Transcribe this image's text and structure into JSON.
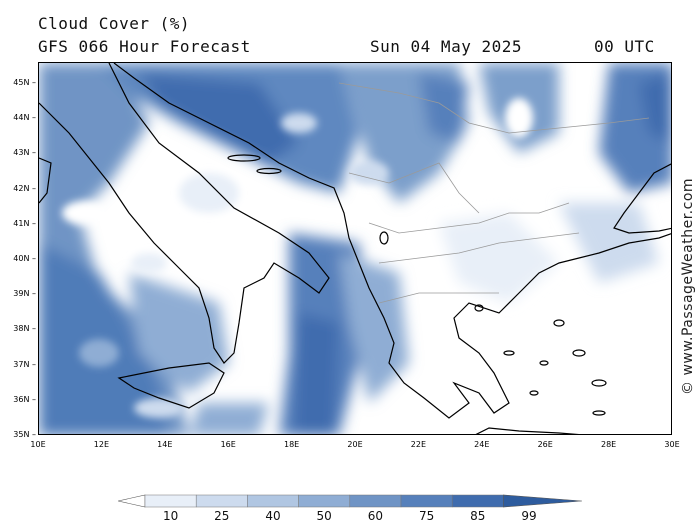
{
  "header": {
    "title": "Cloud Cover (%)",
    "subtitle": "GFS 066 Hour Forecast",
    "datetime": "Sun 04 May 2025",
    "utc": "00 UTC"
  },
  "axes": {
    "latitude_labels": [
      "45N",
      "44N",
      "43N",
      "42N",
      "41N",
      "40N",
      "39N",
      "38N",
      "37N",
      "36N",
      "35N"
    ],
    "longitude_labels": [
      "10E",
      "12E",
      "14E",
      "16E",
      "18E",
      "20E",
      "22E",
      "24E",
      "26E",
      "28E",
      "30E"
    ],
    "lat_range": [
      35,
      45.6
    ],
    "lon_range": [
      10,
      30
    ]
  },
  "legend": {
    "labels": [
      "10",
      "25",
      "40",
      "50",
      "60",
      "75",
      "85",
      "99"
    ],
    "colors": [
      "#ffffff",
      "#e8eff8",
      "#cddbee",
      "#b0c6e2",
      "#8fadd4",
      "#6f94c5",
      "#5680bb",
      "#3f6cae",
      "#2e5c9e"
    ]
  },
  "copyright": "© www.PassageWeather.com",
  "colors": {
    "land_outline": "#000000",
    "border": "#9a9a9a"
  }
}
